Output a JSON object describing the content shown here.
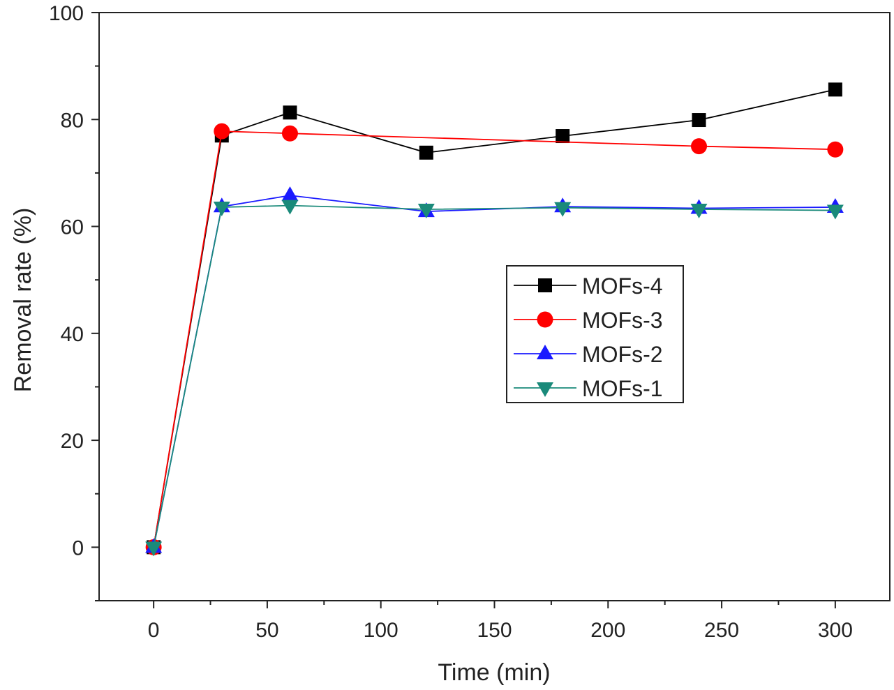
{
  "chart_data": {
    "type": "line",
    "title": "",
    "xlabel": "Time (min)",
    "ylabel": "Removal rate (%)",
    "xlim": [
      -24,
      324
    ],
    "ylim": [
      -10,
      100
    ],
    "x_ticks": [
      0,
      50,
      100,
      150,
      200,
      250,
      300
    ],
    "y_ticks": [
      0,
      20,
      40,
      60,
      80,
      100
    ],
    "x": [
      0,
      30,
      60,
      120,
      180,
      240,
      300
    ],
    "series": [
      {
        "name": "MOFs-4",
        "color": "#000000",
        "marker": "square",
        "values": [
          0,
          77.0,
          81.3,
          73.8,
          76.9,
          79.9,
          85.6
        ]
      },
      {
        "name": "MOFs-3",
        "color": "#ff0000",
        "marker": "circle",
        "values": [
          0,
          77.8,
          77.4,
          null,
          null,
          75.0,
          74.4
        ]
      },
      {
        "name": "MOFs-2",
        "color": "#1a1aff",
        "marker": "triangle-up",
        "values": [
          0,
          63.7,
          65.8,
          62.8,
          63.7,
          63.4,
          63.6
        ]
      },
      {
        "name": "MOFs-1",
        "color": "#1a8a7a",
        "marker": "triangle-down",
        "values": [
          0,
          63.6,
          63.9,
          63.2,
          63.5,
          63.2,
          63.0
        ]
      }
    ],
    "legend_position": "center-right",
    "grid": false
  }
}
